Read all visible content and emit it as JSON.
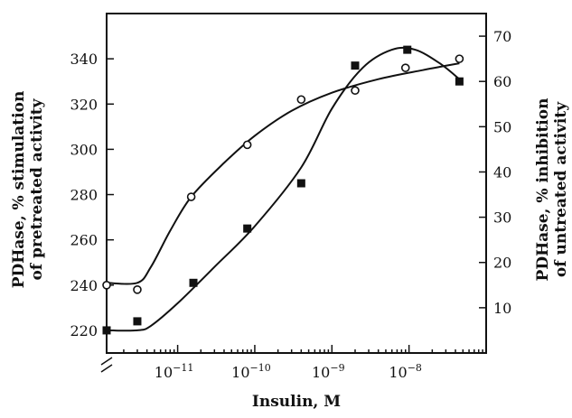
{
  "chart_data": {
    "type": "scatter",
    "xlabel": "Insulin, M",
    "ylabel_left_line1": "PDHase, % stimulation",
    "ylabel_left_line2": "of pretreated activity",
    "ylabel_right_line1": "PDHase, % inhibition",
    "ylabel_right_line2": "of untreated activity",
    "x_scale": "log",
    "xlim": [
      1.2e-12,
      1e-07
    ],
    "x_ticks": [
      1e-11,
      1e-10,
      1e-09,
      1e-08
    ],
    "x_tick_labels": [
      {
        "base": "10",
        "exp": "−11"
      },
      {
        "base": "10",
        "exp": "−10"
      },
      {
        "base": "10",
        "exp": "−9"
      },
      {
        "base": "10",
        "exp": "−8"
      }
    ],
    "y_left_lim": [
      210,
      360
    ],
    "y_left_ticks": [
      "220",
      "240",
      "260",
      "280",
      "300",
      "320",
      "340"
    ],
    "y_right_lim": [
      0,
      75
    ],
    "y_right_ticks": [
      "10",
      "20",
      "30",
      "40",
      "50",
      "60",
      "70"
    ],
    "axis_break": true,
    "series": [
      {
        "marker": "open-circle",
        "axis": "left",
        "points": [
          {
            "x": 1.2e-12,
            "y": 240
          },
          {
            "x": 3e-12,
            "y": 238
          },
          {
            "x": 1.5e-11,
            "y": 279
          },
          {
            "x": 8e-11,
            "y": 302
          },
          {
            "x": 4e-10,
            "y": 322
          },
          {
            "x": 2e-09,
            "y": 326
          },
          {
            "x": 9e-09,
            "y": 336
          },
          {
            "x": 4.5e-08,
            "y": 340
          }
        ],
        "fit": [
          {
            "x": 1.2e-12,
            "y": 241
          },
          {
            "x": 3e-12,
            "y": 241
          },
          {
            "x": 4.5e-12,
            "y": 248
          },
          {
            "x": 8e-12,
            "y": 264
          },
          {
            "x": 1.5e-11,
            "y": 279
          },
          {
            "x": 4e-11,
            "y": 294
          },
          {
            "x": 1e-10,
            "y": 306
          },
          {
            "x": 3e-10,
            "y": 317
          },
          {
            "x": 1e-09,
            "y": 325
          },
          {
            "x": 4e-09,
            "y": 331
          },
          {
            "x": 1.5e-08,
            "y": 335
          },
          {
            "x": 4.5e-08,
            "y": 338
          }
        ]
      },
      {
        "marker": "filled-square",
        "axis": "right",
        "points": [
          {
            "x": 1.2e-12,
            "y": 5
          },
          {
            "x": 3e-12,
            "y": 7
          },
          {
            "x": 1.6e-11,
            "y": 15.5
          },
          {
            "x": 8e-11,
            "y": 27.5
          },
          {
            "x": 4e-10,
            "y": 37.5
          },
          {
            "x": 2e-09,
            "y": 63.5
          },
          {
            "x": 9.5e-09,
            "y": 67
          },
          {
            "x": 4.5e-08,
            "y": 60
          }
        ],
        "fit": [
          {
            "x": 1.2e-12,
            "y": 5
          },
          {
            "x": 3e-12,
            "y": 5
          },
          {
            "x": 4.5e-12,
            "y": 6
          },
          {
            "x": 1e-11,
            "y": 11
          },
          {
            "x": 3e-11,
            "y": 19
          },
          {
            "x": 1e-10,
            "y": 28
          },
          {
            "x": 4e-10,
            "y": 41
          },
          {
            "x": 1e-09,
            "y": 54
          },
          {
            "x": 2.5e-09,
            "y": 63
          },
          {
            "x": 6e-09,
            "y": 67
          },
          {
            "x": 1.2e-08,
            "y": 67
          },
          {
            "x": 2.5e-08,
            "y": 64
          },
          {
            "x": 4.5e-08,
            "y": 60.5
          }
        ]
      }
    ]
  }
}
